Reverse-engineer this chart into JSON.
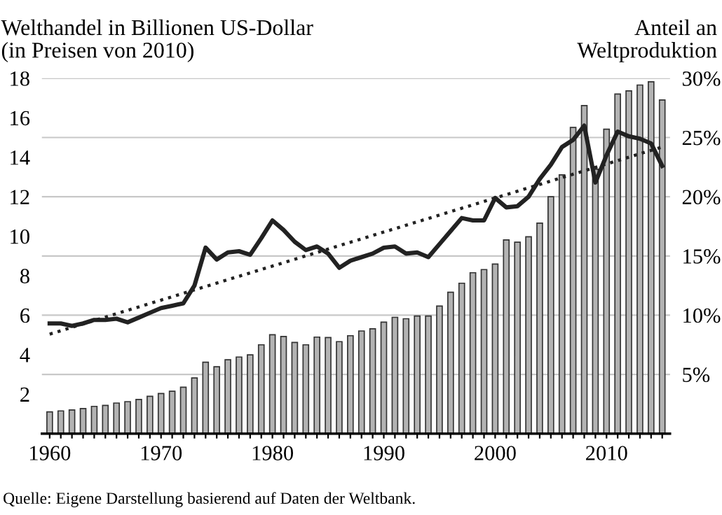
{
  "chart_data": {
    "type": "bar",
    "ylabel": "Welthandel in Billionen US-Dollar\n(in Preisen von 2010)",
    "y2label": "Anteil an\nWeltproduktion",
    "annotations": [
      "Quelle: Eigene Darstellung basierend auf Daten der Weltbank."
    ],
    "x": [
      1960,
      1961,
      1962,
      1963,
      1964,
      1965,
      1966,
      1967,
      1968,
      1969,
      1970,
      1971,
      1972,
      1973,
      1974,
      1975,
      1976,
      1977,
      1978,
      1979,
      1980,
      1981,
      1982,
      1983,
      1984,
      1985,
      1986,
      1987,
      1988,
      1989,
      1990,
      1991,
      1992,
      1993,
      1994,
      1995,
      1996,
      1997,
      1998,
      1999,
      2000,
      2001,
      2002,
      2003,
      2004,
      2005,
      2006,
      2007,
      2008,
      2009,
      2010,
      2011,
      2012,
      2013,
      2014,
      2015
    ],
    "series": [
      {
        "color": "#b3b3b3",
        "values": [
          1.1,
          1.15,
          1.2,
          1.27,
          1.38,
          1.43,
          1.55,
          1.62,
          1.73,
          1.89,
          2.03,
          2.15,
          2.35,
          2.82,
          3.62,
          3.39,
          3.74,
          3.88,
          3.99,
          4.5,
          5.01,
          4.92,
          4.62,
          4.5,
          4.89,
          4.87,
          4.66,
          4.96,
          5.2,
          5.31,
          5.65,
          5.89,
          5.82,
          5.96,
          5.96,
          6.46,
          7.16,
          7.62,
          8.15,
          8.31,
          8.59,
          9.81,
          9.7,
          9.97,
          10.66,
          12.0,
          13.11,
          15.51,
          16.62,
          13.39,
          15.42,
          17.2,
          17.36,
          17.66,
          17.82,
          16.9
        ]
      },
      {
        "type": "line",
        "axis": "y2",
        "color": "#222222",
        "line_style": "solid",
        "values": [
          9.3,
          9.3,
          9.1,
          9.3,
          9.6,
          9.6,
          9.7,
          9.4,
          9.8,
          10.2,
          10.6,
          10.8,
          11.0,
          12.5,
          15.7,
          14.7,
          15.3,
          15.4,
          15.1,
          16.5,
          18.0,
          17.2,
          16.2,
          15.5,
          15.8,
          15.2,
          14.0,
          14.6,
          14.9,
          15.2,
          15.7,
          15.8,
          15.2,
          15.3,
          14.9,
          16.0,
          17.1,
          18.2,
          18.0,
          18.0,
          19.9,
          19.1,
          19.2,
          20.0,
          21.5,
          22.7,
          24.2,
          24.8,
          26.0,
          21.2,
          23.5,
          25.5,
          25.1,
          24.9,
          24.5,
          22.6
        ]
      },
      {
        "type": "line",
        "axis": "y2",
        "color": "#222222",
        "line_style": "dotted",
        "x": [
          1960,
          2015
        ],
        "values": [
          8.4,
          24.2
        ]
      }
    ],
    "xlim": [
      1959.3,
      2015.7
    ],
    "xticks": [
      1960,
      {
        "value": 1961,
        "label": null
      },
      {
        "value": 1962,
        "label": null
      },
      {
        "value": 1963,
        "label": null
      },
      {
        "value": 1964,
        "label": null
      },
      {
        "value": 1965,
        "label": null
      },
      {
        "value": 1966,
        "label": null
      },
      {
        "value": 1967,
        "label": null
      },
      {
        "value": 1968,
        "label": null
      },
      {
        "value": 1969,
        "label": null
      },
      1970,
      {
        "value": 1971,
        "label": null
      },
      {
        "value": 1972,
        "label": null
      },
      {
        "value": 1973,
        "label": null
      },
      {
        "value": 1974,
        "label": null
      },
      {
        "value": 1975,
        "label": null
      },
      {
        "value": 1976,
        "label": null
      },
      {
        "value": 1977,
        "label": null
      },
      {
        "value": 1978,
        "label": null
      },
      {
        "value": 1979,
        "label": null
      },
      1980,
      {
        "value": 1981,
        "label": null
      },
      {
        "value": 1982,
        "label": null
      },
      {
        "value": 1983,
        "label": null
      },
      {
        "value": 1984,
        "label": null
      },
      {
        "value": 1985,
        "label": null
      },
      {
        "value": 1986,
        "label": null
      },
      {
        "value": 1987,
        "label": null
      },
      {
        "value": 1988,
        "label": null
      },
      {
        "value": 1989,
        "label": null
      },
      1990,
      {
        "value": 1991,
        "label": null
      },
      {
        "value": 1992,
        "label": null
      },
      {
        "value": 1993,
        "label": null
      },
      {
        "value": 1994,
        "label": null
      },
      {
        "value": 1995,
        "label": null
      },
      {
        "value": 1996,
        "label": null
      },
      {
        "value": 1997,
        "label": null
      },
      {
        "value": 1998,
        "label": null
      },
      {
        "value": 1999,
        "label": null
      },
      2000,
      {
        "value": 2001,
        "label": null
      },
      {
        "value": 2002,
        "label": null
      },
      {
        "value": 2003,
        "label": null
      },
      {
        "value": 2004,
        "label": null
      },
      {
        "value": 2005,
        "label": null
      },
      {
        "value": 2006,
        "label": null
      },
      {
        "value": 2007,
        "label": null
      },
      {
        "value": 2008,
        "label": null
      },
      {
        "value": 2009,
        "label": null
      },
      2010,
      {
        "value": 2011,
        "label": null
      },
      {
        "value": 2012,
        "label": null
      },
      {
        "value": 2013,
        "label": null
      },
      {
        "value": 2014,
        "label": null
      },
      {
        "value": 2015,
        "label": null
      }
    ],
    "ylim": [
      0,
      18
    ],
    "yticks": [
      2,
      4,
      6,
      8,
      10,
      12,
      14,
      16,
      18
    ],
    "y2lim": [
      0,
      30
    ],
    "y2ticks": [
      {
        "value": 5,
        "label": "5%"
      },
      {
        "value": 10,
        "label": "10%"
      },
      {
        "value": 15,
        "label": "15%"
      },
      {
        "value": 20,
        "label": "20%"
      },
      {
        "value": 25,
        "label": "25%"
      },
      {
        "value": 30,
        "label": "30%"
      }
    ],
    "grid": "y2",
    "legend": false
  }
}
